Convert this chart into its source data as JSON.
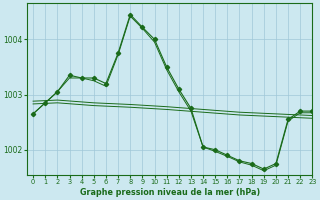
{
  "title": "Graphe pression niveau de la mer (hPa)",
  "background_color": "#cce8f0",
  "grid_color": "#a0c8d8",
  "line_color": "#1a6b1a",
  "xlim": [
    -0.5,
    23
  ],
  "ylim": [
    1001.55,
    1004.65
  ],
  "yticks": [
    1002,
    1003,
    1004
  ],
  "xticks": [
    0,
    1,
    2,
    3,
    4,
    5,
    6,
    7,
    8,
    9,
    10,
    11,
    12,
    13,
    14,
    15,
    16,
    17,
    18,
    19,
    20,
    21,
    22,
    23
  ],
  "series1_x": [
    0,
    1,
    2,
    3,
    4,
    5,
    6,
    7,
    8,
    9,
    10,
    11,
    12,
    13,
    14,
    15,
    16,
    17,
    18,
    19,
    20,
    21,
    22,
    23
  ],
  "series1_y": [
    1002.65,
    1002.85,
    1003.05,
    1003.35,
    1003.3,
    1003.3,
    1003.2,
    1003.75,
    1004.45,
    1004.22,
    1004.0,
    1003.5,
    1003.1,
    1002.75,
    1002.05,
    1002.0,
    1001.9,
    1001.8,
    1001.75,
    1001.65,
    1001.75,
    1002.55,
    1002.7,
    1002.7
  ],
  "series2_x": [
    0,
    1,
    2,
    3,
    4,
    5,
    6,
    7,
    8,
    9,
    10,
    11,
    12,
    13,
    14,
    15,
    16,
    17,
    18,
    19,
    20,
    21,
    22,
    23
  ],
  "series2_y": [
    1002.65,
    1002.85,
    1003.05,
    1003.3,
    1003.3,
    1003.25,
    1003.15,
    1003.72,
    1004.42,
    1004.2,
    1003.95,
    1003.45,
    1003.05,
    1002.7,
    1002.05,
    1001.97,
    1001.88,
    1001.78,
    1001.72,
    1001.62,
    1001.72,
    1002.52,
    1002.67,
    1002.67
  ],
  "series3_x": [
    0,
    23
  ],
  "series3_y": [
    1002.65,
    1002.7
  ],
  "series4_x": [
    0,
    23
  ],
  "series4_y": [
    1002.62,
    1002.65
  ]
}
